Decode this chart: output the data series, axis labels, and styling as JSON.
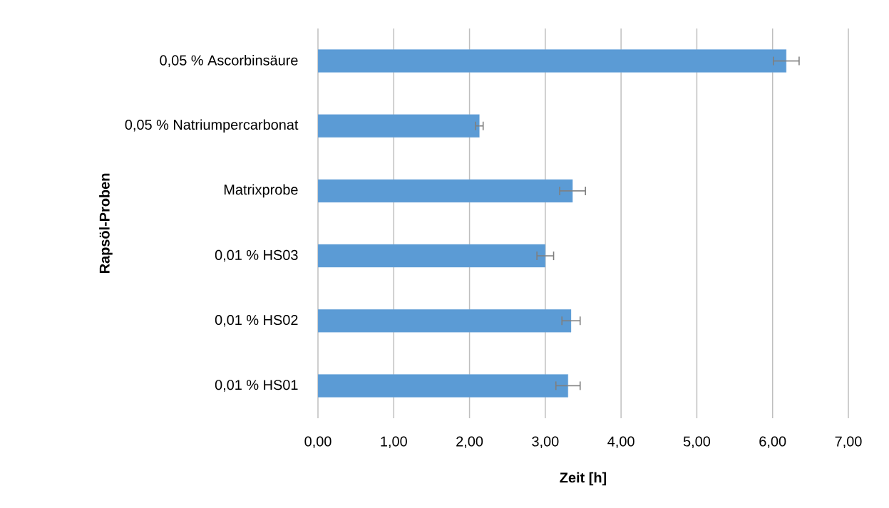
{
  "chart_data": {
    "type": "bar",
    "orientation": "horizontal",
    "xlabel": "Zeit [h]",
    "ylabel": "Rapsöl-Proben",
    "categories": [
      "0,05 % Ascorbinsäure",
      "0,05 % Natriumpercarbonat",
      "Matrixprobe",
      "0,01 % HS03",
      "0,01 % HS02",
      "0,01 % HS01"
    ],
    "values": [
      6.18,
      2.13,
      3.36,
      3.0,
      3.34,
      3.3
    ],
    "errors": [
      0.17,
      0.05,
      0.17,
      0.11,
      0.12,
      0.16
    ],
    "color": "#5b9bd5",
    "xlim": [
      0,
      7
    ],
    "xticks": [
      {
        "value": 0,
        "label": "0,00"
      },
      {
        "value": 1,
        "label": "1,00"
      },
      {
        "value": 2,
        "label": "2,00"
      },
      {
        "value": 3,
        "label": "3,00"
      },
      {
        "value": 4,
        "label": "4,00"
      },
      {
        "value": 5,
        "label": "5,00"
      },
      {
        "value": 6,
        "label": "6,00"
      },
      {
        "value": 7,
        "label": "7,00"
      }
    ],
    "grid": "x"
  }
}
